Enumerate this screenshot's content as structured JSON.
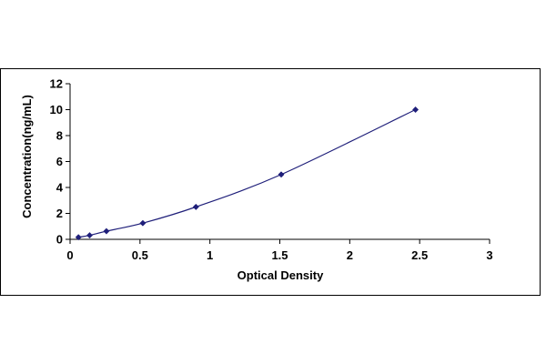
{
  "chart_data": {
    "type": "scatter",
    "xlabel": "Optical Density",
    "ylabel": "Concentration(ng/mL)",
    "xlim": [
      0,
      3
    ],
    "ylim": [
      0,
      12
    ],
    "xticks": [
      "0",
      "0.5",
      "1",
      "1.5",
      "2",
      "2.5",
      "3"
    ],
    "yticks": [
      "0",
      "2",
      "4",
      "6",
      "8",
      "10",
      "12"
    ],
    "grid": false,
    "legend": "none",
    "trendline": "smooth curve through points",
    "marker_color": "#1f1f7a",
    "line_color": "#1f1f7a",
    "series": [
      {
        "x": [
          0.06,
          0.14,
          0.26,
          0.52,
          0.9,
          1.51,
          2.47
        ],
        "y": [
          0.16,
          0.31,
          0.63,
          1.25,
          2.5,
          5,
          10
        ]
      }
    ]
  }
}
